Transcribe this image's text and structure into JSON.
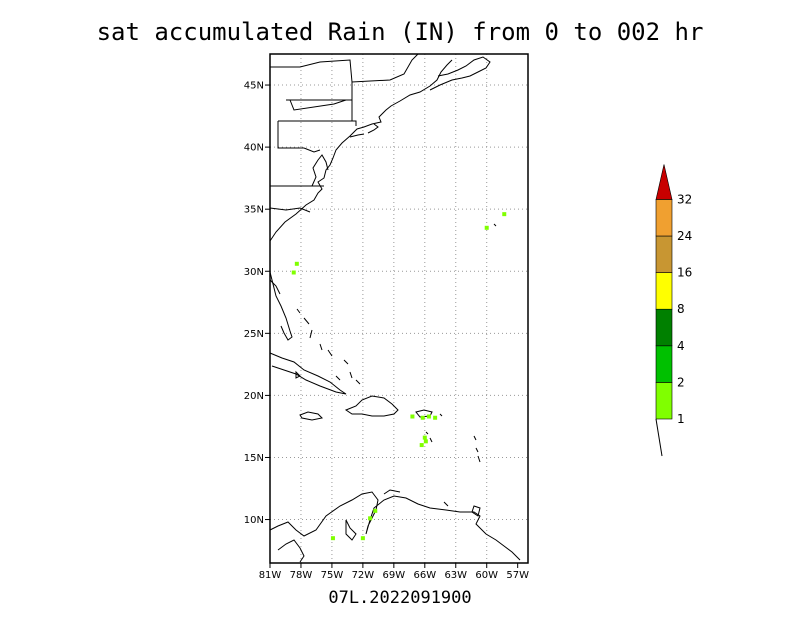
{
  "title": "sat accumulated Rain (IN) from 0 to 002 hr",
  "footer": "07L.2022091900",
  "map": {
    "lon_range": [
      -81,
      -56
    ],
    "lat_range": [
      6.5,
      47.5
    ],
    "lon_ticks": [
      "81W",
      "78W",
      "75W",
      "72W",
      "69W",
      "66W",
      "63W",
      "60W",
      "57W"
    ],
    "lat_ticks": [
      "45N",
      "40N",
      "35N",
      "30N",
      "25N",
      "20N",
      "15N",
      "10N"
    ],
    "grid": "dotted"
  },
  "colorbar": {
    "labels": [
      "1",
      "2",
      "4",
      "8",
      "16",
      "24",
      "32"
    ],
    "colors": [
      "#80ff00",
      "#00c000",
      "#008000",
      "#ffff00",
      "#c89632",
      "#f0a030",
      "#c80000"
    ]
  },
  "rain_marks": [
    {
      "lon": -78.4,
      "lat": 30.6
    },
    {
      "lon": -78.7,
      "lat": 29.9
    },
    {
      "lon": -60.0,
      "lat": 33.5
    },
    {
      "lon": -58.3,
      "lat": 34.6
    },
    {
      "lon": -66.2,
      "lat": 18.2
    },
    {
      "lon": -65.6,
      "lat": 18.3
    },
    {
      "lon": -65.0,
      "lat": 18.2
    },
    {
      "lon": -66.0,
      "lat": 16.6
    },
    {
      "lon": -66.3,
      "lat": 16.0
    },
    {
      "lon": -65.9,
      "lat": 16.3
    },
    {
      "lon": -67.2,
      "lat": 18.3
    },
    {
      "lon": -70.8,
      "lat": 10.7
    },
    {
      "lon": -72.0,
      "lat": 8.5
    },
    {
      "lon": -74.9,
      "lat": 8.5
    },
    {
      "lon": -71.3,
      "lat": 10.1
    }
  ]
}
